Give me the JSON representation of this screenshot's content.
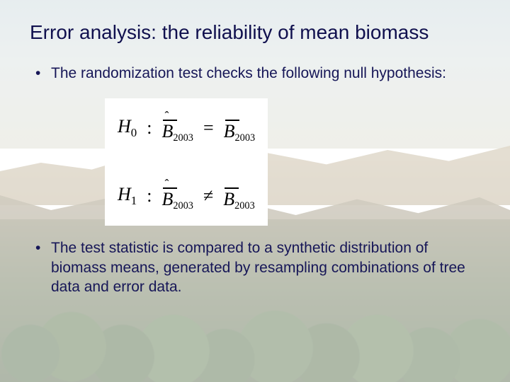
{
  "title": "Error analysis: the reliability of mean biomass",
  "bullets": [
    "The randomization test checks the following null hypothesis:",
    "The test statistic is compared to a synthetic distribution of biomass means, generated by resampling combinations of tree data and error data."
  ],
  "equations": {
    "h0": {
      "label": "H",
      "sub": "0",
      "colon": ":",
      "lhs_sym": "B̂",
      "lhs_sub": "2003",
      "op": "=",
      "rhs_sym": "B",
      "rhs_sub": "2003"
    },
    "h1": {
      "label": "H",
      "sub": "1",
      "colon": ":",
      "lhs_sym": "B̂",
      "lhs_sub": "2003",
      "op": "≠",
      "rhs_sym": "B",
      "rhs_sub": "2003"
    }
  },
  "colors": {
    "title": "#10104e",
    "body": "#161657",
    "eq_bg": "#ffffff"
  },
  "fonts": {
    "title_size": 28,
    "body_size": 21,
    "eq_size": 26
  }
}
